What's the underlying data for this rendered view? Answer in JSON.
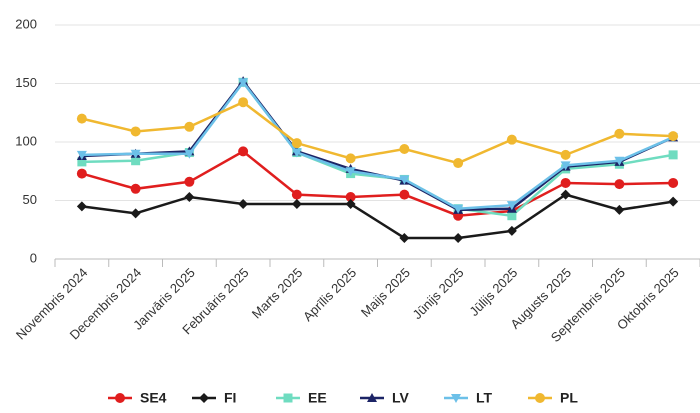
{
  "chart_data": {
    "type": "line",
    "categories": [
      "Novembris 2024",
      "Decembris 2024",
      "Janvāris 2025",
      "Februāris 2025",
      "Marts 2025",
      "Aprīlis 2025",
      "Maijs 2025",
      "Jūnijs 2025",
      "Jūlijs 2025",
      "Augusts 2025",
      "Septembris 2025",
      "Oktobris 2025"
    ],
    "series": [
      {
        "name": "SE4",
        "color": "#e01e1e",
        "marker": "circle",
        "values": [
          73,
          60,
          66,
          92,
          55,
          53,
          55,
          37,
          41,
          65,
          64,
          65
        ]
      },
      {
        "name": "FI",
        "color": "#1a1a1a",
        "marker": "diamond",
        "values": [
          45,
          39,
          53,
          47,
          47,
          47,
          18,
          18,
          24,
          55,
          42,
          49
        ]
      },
      {
        "name": "EE",
        "color": "#6fdcc0",
        "marker": "square",
        "values": [
          83,
          84,
          91,
          151,
          91,
          73,
          68,
          43,
          37,
          77,
          81,
          89
        ]
      },
      {
        "name": "LV",
        "color": "#1c2466",
        "marker": "triangle",
        "values": [
          88,
          90,
          92,
          152,
          92,
          77,
          67,
          42,
          43,
          79,
          83,
          104
        ]
      },
      {
        "name": "LT",
        "color": "#6cc0e8",
        "marker": "triangle-down",
        "values": [
          89,
          90,
          90,
          151,
          91,
          75,
          68,
          43,
          46,
          80,
          84,
          104
        ]
      },
      {
        "name": "PL",
        "color": "#f0b830",
        "marker": "circle",
        "values": [
          120,
          109,
          113,
          134,
          99,
          86,
          94,
          82,
          102,
          89,
          107,
          105
        ]
      }
    ],
    "ylim": [
      0,
      200
    ],
    "yticks": [
      0,
      50,
      100,
      150,
      200
    ],
    "grid": true,
    "legend": "bottom"
  }
}
